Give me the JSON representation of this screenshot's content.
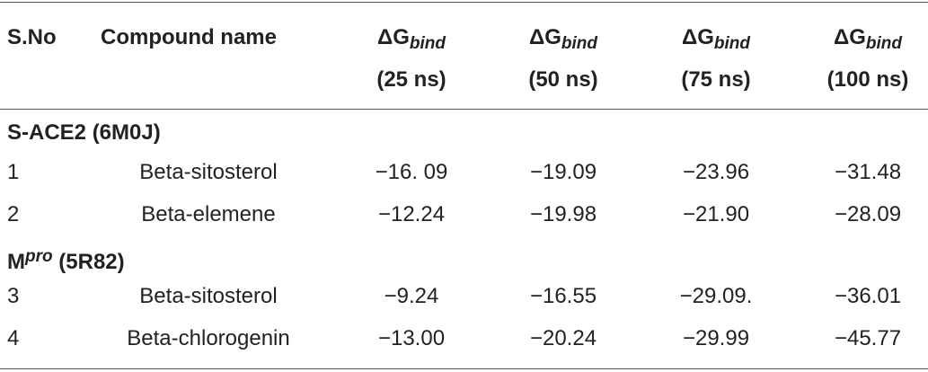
{
  "table": {
    "header": [
      {
        "label": "S.No"
      },
      {
        "label": "Compound name"
      },
      {
        "main": "ΔG",
        "sub": "bind",
        "note": "(25 ns)"
      },
      {
        "main": "ΔG",
        "sub": "bind",
        "note": "(50 ns)"
      },
      {
        "main": "ΔG",
        "sub": "bind",
        "note": "(75 ns)"
      },
      {
        "main": "ΔG",
        "sub": "bind",
        "note": "(100 ns)"
      }
    ],
    "sections": [
      {
        "title": {
          "base": "S-ACE2 (6M0J)"
        },
        "rows": [
          [
            "1",
            "Beta-sitosterol",
            "−16. 09",
            "−19.09",
            "−23.96",
            "−31.48"
          ],
          [
            "2",
            "Beta-elemene",
            "−12.24",
            "−19.98",
            "−21.90",
            "−28.09"
          ]
        ]
      },
      {
        "title": {
          "base": "M",
          "sup": "pro",
          "rest": " (5R82)"
        },
        "rows": [
          [
            "3",
            "Beta-sitosterol",
            "−9.24",
            "−16.55",
            "−29.09.",
            "−36.01"
          ],
          [
            "4",
            "Beta-chlorogenin",
            "−13.00",
            "−20.24",
            "−29.99",
            "−45.77"
          ]
        ]
      }
    ]
  }
}
